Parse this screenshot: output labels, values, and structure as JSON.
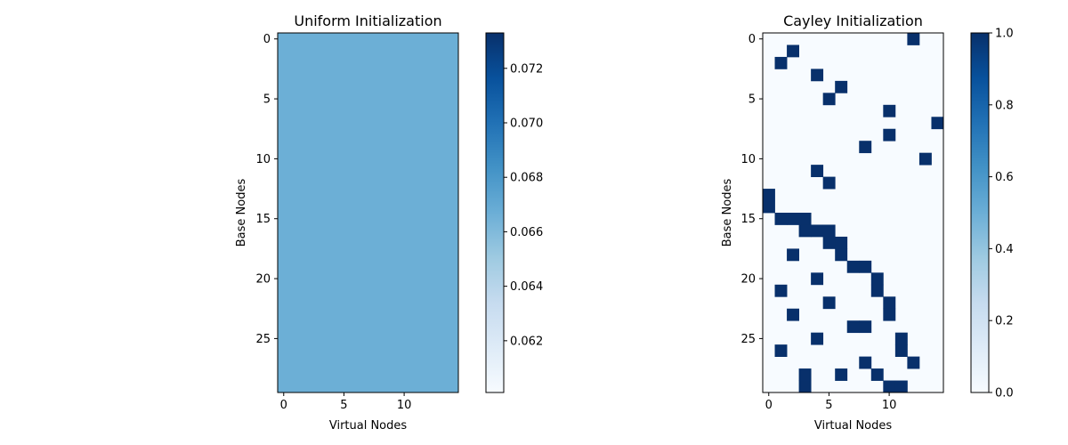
{
  "colors": {
    "cmap": [
      "#f7fbff",
      "#deebf7",
      "#c6dbef",
      "#9ecae1",
      "#6baed6",
      "#4292c6",
      "#2171b5",
      "#08519c",
      "#08306b"
    ],
    "frame": "#000000"
  },
  "chart_data": [
    {
      "type": "heatmap",
      "title": "Uniform Initialization",
      "xlabel": "Virtual Nodes",
      "ylabel": "Base Nodes",
      "rows": 30,
      "cols": 15,
      "fill_value": 0.06667,
      "x_ticks": [
        0,
        5,
        10
      ],
      "y_ticks": [
        0,
        5,
        10,
        15,
        20,
        25
      ],
      "colorbar": {
        "range": [
          0.0601,
          0.0733
        ],
        "ticks": [
          0.062,
          0.064,
          0.066,
          0.068,
          0.07,
          0.072
        ],
        "tick_labels": [
          "0.062",
          "0.064",
          "0.066",
          "0.068",
          "0.070",
          "0.072"
        ]
      }
    },
    {
      "type": "heatmap",
      "title": "Cayley Initialization",
      "xlabel": "Virtual Nodes",
      "ylabel": "Base Nodes",
      "rows": 30,
      "cols": 15,
      "fill_value": 0,
      "x_ticks": [
        0,
        5,
        10
      ],
      "y_ticks": [
        0,
        5,
        10,
        15,
        20,
        25
      ],
      "ones": [
        [
          0,
          12
        ],
        [
          1,
          2
        ],
        [
          2,
          1
        ],
        [
          3,
          4
        ],
        [
          4,
          6
        ],
        [
          5,
          5
        ],
        [
          6,
          10
        ],
        [
          7,
          14
        ],
        [
          8,
          10
        ],
        [
          9,
          8
        ],
        [
          10,
          13
        ],
        [
          11,
          4
        ],
        [
          12,
          5
        ],
        [
          13,
          0
        ],
        [
          14,
          0
        ],
        [
          15,
          1
        ],
        [
          15,
          2
        ],
        [
          15,
          3
        ],
        [
          16,
          3
        ],
        [
          16,
          4
        ],
        [
          16,
          5
        ],
        [
          17,
          5
        ],
        [
          17,
          6
        ],
        [
          18,
          2
        ],
        [
          18,
          6
        ],
        [
          19,
          7
        ],
        [
          19,
          8
        ],
        [
          20,
          4
        ],
        [
          20,
          9
        ],
        [
          21,
          1
        ],
        [
          21,
          9
        ],
        [
          22,
          5
        ],
        [
          22,
          10
        ],
        [
          23,
          2
        ],
        [
          23,
          10
        ],
        [
          24,
          7
        ],
        [
          24,
          8
        ],
        [
          25,
          4
        ],
        [
          25,
          11
        ],
        [
          26,
          1
        ],
        [
          26,
          11
        ],
        [
          27,
          8
        ],
        [
          27,
          12
        ],
        [
          28,
          3
        ],
        [
          28,
          6
        ],
        [
          28,
          9
        ],
        [
          29,
          3
        ],
        [
          29,
          10
        ],
        [
          29,
          11
        ]
      ],
      "colorbar": {
        "range": [
          0,
          1
        ],
        "ticks": [
          0,
          0.2,
          0.4,
          0.6,
          0.8,
          1.0
        ],
        "tick_labels": [
          "0.0",
          "0.2",
          "0.4",
          "0.6",
          "0.8",
          "1.0"
        ]
      }
    }
  ]
}
